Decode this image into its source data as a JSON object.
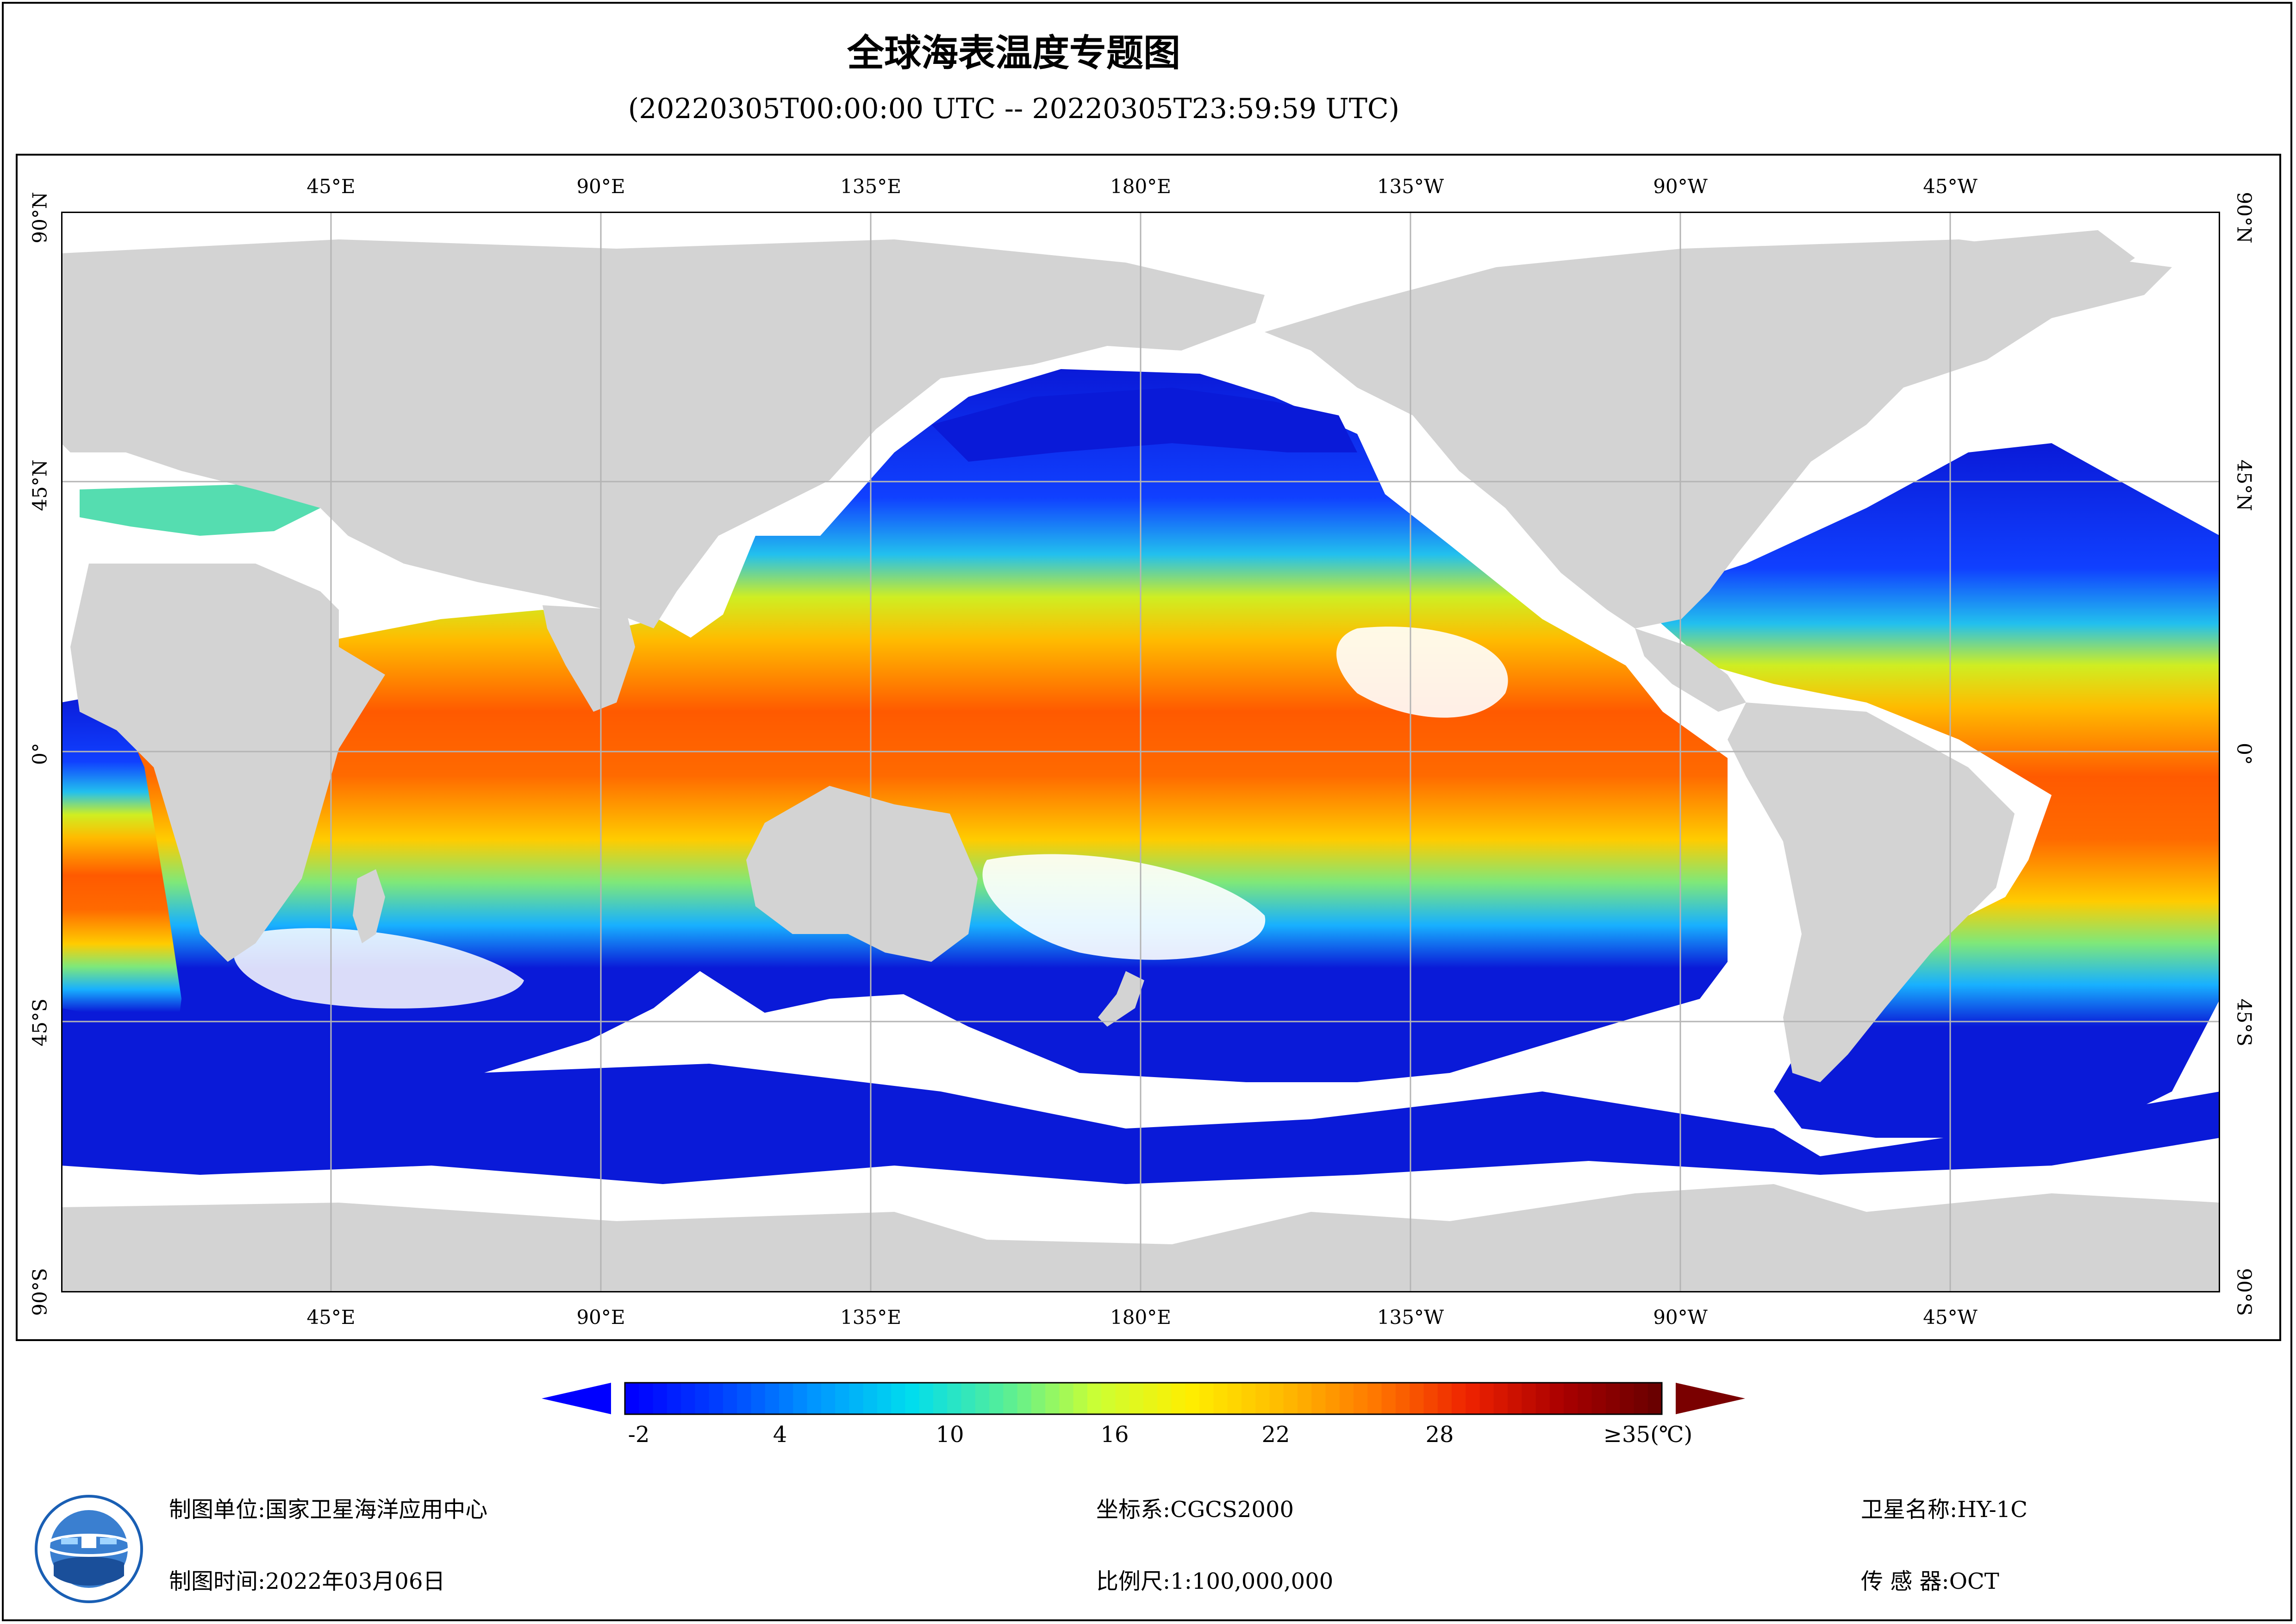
{
  "header": {
    "title": "全球海表温度专题图",
    "subtitle": "(20220305T00:00:00 UTC -- 20220305T23:59:59 UTC)"
  },
  "map": {
    "lon_labels": [
      "45°E",
      "90°E",
      "135°E",
      "180°E",
      "135°W",
      "90°W",
      "45°W"
    ],
    "lat_labels": [
      "90°N",
      "45°N",
      "0°",
      "45°S",
      "90°S"
    ],
    "land_color": "#d3d3d3",
    "no_data_color": "#ffffff",
    "grid_color": "#b4b4b4"
  },
  "colorbar": {
    "tick_labels": [
      "-2",
      "4",
      "10",
      "16",
      "22",
      "28",
      "≥35(℃)"
    ],
    "color_stops": [
      "#0000ff",
      "#0044ff",
      "#0099ff",
      "#00ddee",
      "#55ee99",
      "#ccff33",
      "#ffee00",
      "#ffbb00",
      "#ff7700",
      "#ee2200",
      "#aa0000",
      "#6a0000"
    ],
    "under_color": "#0000ff",
    "over_color": "#7a0000"
  },
  "footer": {
    "org_label": "制图单位:",
    "org_value": "国家卫星海洋应用中心",
    "time_label": "制图时间:",
    "time_value": "2022年03月06日",
    "crs_label": "坐标系:",
    "crs_value": "CGCS2000",
    "scale_label": "比例尺:",
    "scale_value": "1:100,000,000",
    "satellite_label": "卫星名称:",
    "satellite_value": "HY-1C",
    "sensor_label": "传 感 器:",
    "sensor_value": "OCT"
  }
}
